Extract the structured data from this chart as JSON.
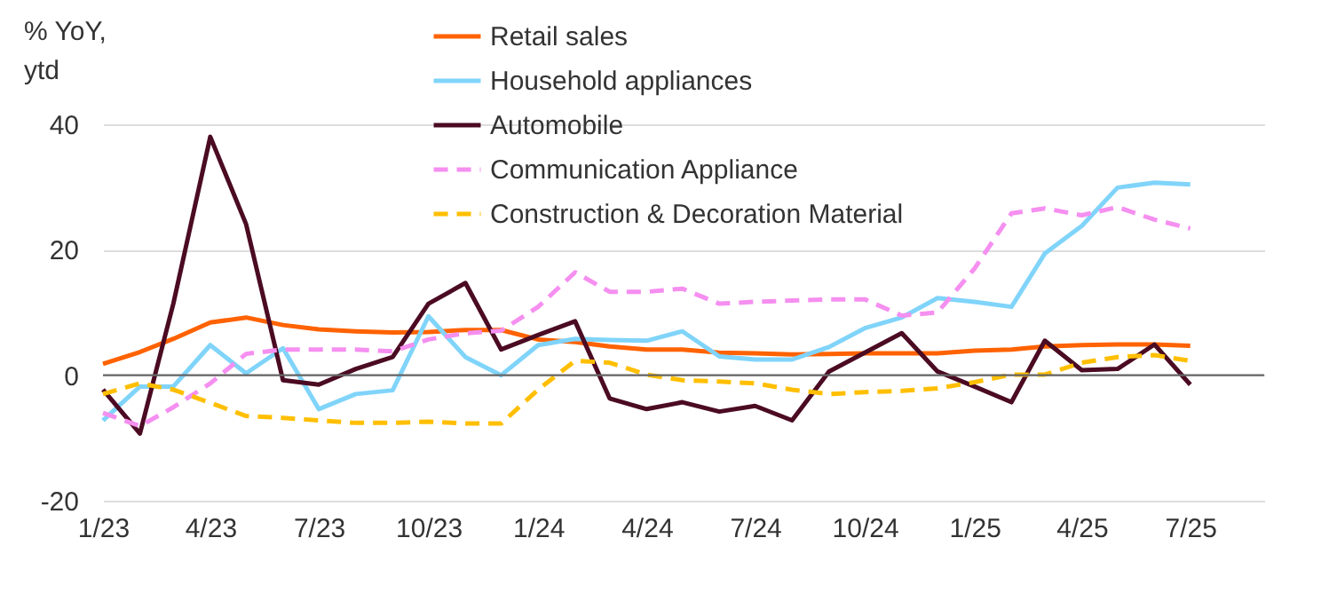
{
  "chart_data": {
    "type": "line",
    "ylabel": "% YoY,\nytd",
    "x": [
      "2023-01",
      "2023-02",
      "2023-03",
      "2023-04",
      "2023-05",
      "2023-06",
      "2023-07",
      "2023-08",
      "2023-09",
      "2023-10",
      "2023-11",
      "2023-12",
      "2024-01",
      "2024-02",
      "2024-03",
      "2024-04",
      "2024-05",
      "2024-06",
      "2024-07",
      "2024-08",
      "2024-09",
      "2024-10",
      "2024-11",
      "2024-12",
      "2025-01",
      "2025-02",
      "2025-03",
      "2025-04",
      "2025-05",
      "2025-06",
      "2025-07"
    ],
    "series": [
      {
        "name": "Retail sales",
        "color": "#ff6200",
        "line_style": "solid",
        "values": [
          1.8,
          3.7,
          5.8,
          8.4,
          9.2,
          8.0,
          7.3,
          7.0,
          6.8,
          6.9,
          7.2,
          7.2,
          5.7,
          5.3,
          4.6,
          4.1,
          4.1,
          3.6,
          3.5,
          3.3,
          3.4,
          3.5,
          3.5,
          3.5,
          3.9,
          4.1,
          4.6,
          4.8,
          4.9,
          4.9,
          4.7
        ]
      },
      {
        "name": "Household appliances",
        "color": "#80d4fa",
        "line_style": "solid",
        "values": [
          -7.2,
          -1.8,
          -1.8,
          4.8,
          0.3,
          4.3,
          -5.4,
          -3.0,
          -2.4,
          9.4,
          2.9,
          0.0,
          4.8,
          5.8,
          5.6,
          5.5,
          7.0,
          3.0,
          2.5,
          2.5,
          4.5,
          7.5,
          9.2,
          12.3,
          11.7,
          10.9,
          19.4,
          23.8,
          29.9,
          30.7,
          30.4
        ]
      },
      {
        "name": "Automobile",
        "color": "#4b0b22",
        "line_style": "solid",
        "values": [
          -2.3,
          -9.3,
          11.4,
          38.0,
          24.1,
          -0.8,
          -1.5,
          1.0,
          2.9,
          11.4,
          14.7,
          4.1,
          6.4,
          8.6,
          -3.7,
          -5.4,
          -4.3,
          -5.8,
          -4.9,
          -7.2,
          0.6,
          3.6,
          6.7,
          0.6,
          -1.8,
          -4.3,
          5.5,
          0.8,
          1.0,
          4.9,
          -1.5
        ]
      },
      {
        "name": "Communication Appliance",
        "color": "#f58ff0",
        "line_style": "dashed",
        "values": [
          -6.0,
          -8.1,
          -5.1,
          -1.3,
          3.4,
          4.1,
          4.1,
          4.1,
          3.8,
          5.7,
          6.7,
          7.1,
          10.9,
          16.4,
          13.3,
          13.3,
          13.8,
          11.4,
          11.7,
          11.9,
          12.1,
          12.1,
          9.5,
          10.0,
          17.0,
          25.8,
          26.6,
          25.5,
          26.8,
          24.8,
          23.4
        ]
      },
      {
        "name": "Construction & Decoration Material",
        "color": "#ffbf00",
        "line_style": "dashed",
        "values": [
          -3.0,
          -1.3,
          -2.3,
          -4.4,
          -6.5,
          -6.8,
          -7.2,
          -7.6,
          -7.6,
          -7.4,
          -7.7,
          -7.7,
          -2.3,
          2.3,
          2.0,
          0.1,
          -0.8,
          -1.0,
          -1.3,
          -2.3,
          -3.0,
          -2.7,
          -2.5,
          -2.1,
          -1.1,
          0.1,
          0.1,
          2.0,
          2.9,
          3.2,
          2.3
        ]
      }
    ],
    "xlim": [
      "2023-01",
      "2025-09"
    ],
    "xticks": [
      {
        "value": "2023-01",
        "label": "1/23"
      },
      {
        "value": "2023-04",
        "label": "4/23"
      },
      {
        "value": "2023-07",
        "label": "7/23"
      },
      {
        "value": "2023-10",
        "label": "10/23"
      },
      {
        "value": "2024-01",
        "label": "1/24"
      },
      {
        "value": "2024-04",
        "label": "4/24"
      },
      {
        "value": "2024-07",
        "label": "7/24"
      },
      {
        "value": "2024-10",
        "label": "10/24"
      },
      {
        "value": "2025-01",
        "label": "1/25"
      },
      {
        "value": "2025-04",
        "label": "4/25"
      },
      {
        "value": "2025-07",
        "label": "7/25"
      }
    ],
    "ylim": [
      -20,
      40
    ],
    "yticks": [
      -20,
      0,
      20,
      40
    ],
    "ref_lines": [
      {
        "axis": "y",
        "value": 0,
        "color": "#666666"
      }
    ],
    "grid": "y",
    "legend": "top",
    "marker": "none"
  }
}
